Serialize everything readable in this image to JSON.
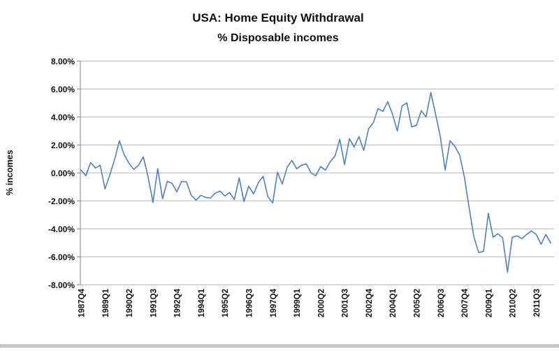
{
  "title": {
    "line1": "USA: Home Equity Withdrawal",
    "line2": "% Disposable incomes"
  },
  "y_axis": {
    "title": "% incomes",
    "tick_labels": [
      "8.00%",
      "6.00%",
      "4.00%",
      "2.00%",
      "0.00%",
      "-2.00%",
      "-4.00%",
      "-6.00%",
      "-8.00%"
    ],
    "max": 8,
    "min": -8,
    "step": 2
  },
  "x_axis": {
    "visible_labels": [
      "1987Q4",
      "1989Q1",
      "1990Q2",
      "1991Q3",
      "1992Q4",
      "1994Q1",
      "1995Q2",
      "1996Q3",
      "1997Q4",
      "1999Q1",
      "2000Q2",
      "2001Q3",
      "2002Q4",
      "2004Q1",
      "2005Q2",
      "2006Q3",
      "2007Q4",
      "2009Q1",
      "2010Q2",
      "2011Q3"
    ],
    "label_every_n_points": 5
  },
  "colors": {
    "line": "#4f81bd",
    "gridline": "#b3b3b3",
    "axis": "#808080",
    "text": "#111111",
    "bottom_rule_fill": "#cfcfcf",
    "bottom_rule_edge": "#9f9f9f"
  },
  "chart_data": {
    "type": "line",
    "title": "USA: Home Equity Withdrawal",
    "subtitle": "% Disposable incomes",
    "xlabel": "",
    "ylabel": "% incomes",
    "ylim": [
      -8,
      8
    ],
    "y_tick_step": 2,
    "grid": "horizontal",
    "legend": "none",
    "units": "percent of disposable income, quarterly",
    "x": [
      "1987Q4",
      "1988Q1",
      "1988Q2",
      "1988Q3",
      "1988Q4",
      "1989Q1",
      "1989Q2",
      "1989Q3",
      "1989Q4",
      "1990Q1",
      "1990Q2",
      "1990Q3",
      "1990Q4",
      "1991Q1",
      "1991Q2",
      "1991Q3",
      "1991Q4",
      "1992Q1",
      "1992Q2",
      "1992Q3",
      "1992Q4",
      "1993Q1",
      "1993Q2",
      "1993Q3",
      "1993Q4",
      "1994Q1",
      "1994Q2",
      "1994Q3",
      "1994Q4",
      "1995Q1",
      "1995Q2",
      "1995Q3",
      "1995Q4",
      "1996Q1",
      "1996Q2",
      "1996Q3",
      "1996Q4",
      "1997Q1",
      "1997Q2",
      "1997Q3",
      "1997Q4",
      "1998Q1",
      "1998Q2",
      "1998Q3",
      "1998Q4",
      "1999Q1",
      "1999Q2",
      "1999Q3",
      "1999Q4",
      "2000Q1",
      "2000Q2",
      "2000Q3",
      "2000Q4",
      "2001Q1",
      "2001Q2",
      "2001Q3",
      "2001Q4",
      "2002Q1",
      "2002Q2",
      "2002Q3",
      "2002Q4",
      "2003Q1",
      "2003Q2",
      "2003Q3",
      "2003Q4",
      "2004Q1",
      "2004Q2",
      "2004Q3",
      "2004Q4",
      "2005Q1",
      "2005Q2",
      "2005Q3",
      "2005Q4",
      "2006Q1",
      "2006Q2",
      "2006Q3",
      "2006Q4",
      "2007Q1",
      "2007Q2",
      "2007Q3",
      "2007Q4",
      "2008Q1",
      "2008Q2",
      "2008Q3",
      "2008Q4",
      "2009Q1",
      "2009Q2",
      "2009Q3",
      "2009Q4",
      "2010Q1",
      "2010Q2",
      "2010Q3",
      "2010Q4",
      "2011Q1",
      "2011Q2",
      "2011Q3",
      "2011Q4",
      "2012Q1",
      "2012Q2"
    ],
    "values": [
      0.2,
      -0.2,
      0.75,
      0.35,
      0.55,
      -1.15,
      -0.15,
      0.95,
      2.3,
      1.3,
      0.7,
      0.25,
      0.55,
      1.15,
      -0.3,
      -2.1,
      0.3,
      -1.85,
      -0.6,
      -0.75,
      -1.35,
      -0.6,
      -0.65,
      -1.6,
      -1.95,
      -1.6,
      -1.75,
      -1.8,
      -1.45,
      -1.3,
      -1.65,
      -1.4,
      -1.9,
      -0.35,
      -2.05,
      -0.95,
      -1.5,
      -0.7,
      -0.25,
      -1.7,
      -2.15,
      0.05,
      -0.8,
      0.4,
      0.9,
      0.3,
      0.55,
      0.65,
      0.0,
      -0.2,
      0.45,
      0.2,
      0.8,
      1.2,
      2.4,
      0.6,
      2.45,
      1.85,
      2.6,
      1.6,
      3.15,
      3.6,
      4.6,
      4.4,
      5.1,
      4.2,
      3.0,
      4.8,
      5.0,
      3.3,
      3.4,
      4.45,
      4.0,
      5.75,
      4.2,
      2.55,
      0.2,
      2.3,
      1.9,
      1.3,
      -0.3,
      -2.5,
      -4.6,
      -5.7,
      -5.6,
      -2.9,
      -4.6,
      -4.35,
      -4.65,
      -7.1,
      -4.6,
      -4.5,
      -4.7,
      -4.4,
      -4.15,
      -4.4,
      -5.1,
      -4.4,
      -5.0
    ]
  }
}
